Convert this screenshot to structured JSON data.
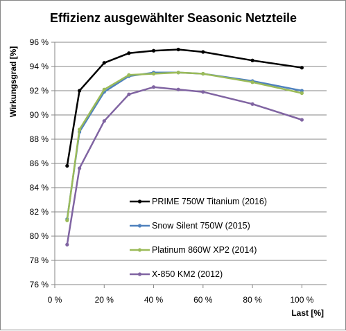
{
  "chart_data": {
    "type": "line",
    "title": "Effizienz ausgewählter Seasonic Netzteile",
    "xlabel": "Last [%]",
    "ylabel": "Wirkungsgrad [%]",
    "x_ticks": [
      "0 %",
      "20 %",
      "40 %",
      "60 %",
      "80 %",
      "100 %"
    ],
    "y_ticks": [
      "76 %",
      "78 %",
      "80 %",
      "82 %",
      "84 %",
      "86 %",
      "88 %",
      "90 %",
      "92 %",
      "94 %",
      "96 %"
    ],
    "xlim": [
      0,
      110
    ],
    "ylim": [
      76,
      96
    ],
    "grid": "horizontal",
    "legend_position": "inside-bottom",
    "series": [
      {
        "name": "PRIME 750W Titanium (2016)",
        "color": "#000000",
        "x": [
          5,
          10,
          20,
          30,
          40,
          50,
          60,
          80,
          100
        ],
        "y": [
          85.8,
          92.0,
          94.3,
          95.1,
          95.3,
          95.4,
          95.2,
          94.5,
          93.9
        ]
      },
      {
        "name": "Snow Silent 750W (2015)",
        "color": "#4f81bd",
        "x": [
          5,
          10,
          20,
          30,
          40,
          50,
          60,
          80,
          100
        ],
        "y": [
          81.4,
          88.6,
          91.9,
          93.2,
          93.5,
          93.5,
          93.4,
          92.8,
          92.0
        ]
      },
      {
        "name": "Platinum 860W XP2 (2014)",
        "color": "#9bbb59",
        "x": [
          5,
          10,
          20,
          30,
          40,
          50,
          60,
          80,
          100
        ],
        "y": [
          81.3,
          88.8,
          92.1,
          93.3,
          93.4,
          93.5,
          93.4,
          92.7,
          91.8
        ]
      },
      {
        "name": "X-850 KM2 (2012)",
        "color": "#8064a2",
        "x": [
          5,
          10,
          20,
          30,
          40,
          50,
          60,
          80,
          100
        ],
        "y": [
          79.3,
          85.6,
          89.5,
          91.7,
          92.3,
          92.1,
          91.9,
          90.9,
          89.6
        ]
      }
    ]
  }
}
